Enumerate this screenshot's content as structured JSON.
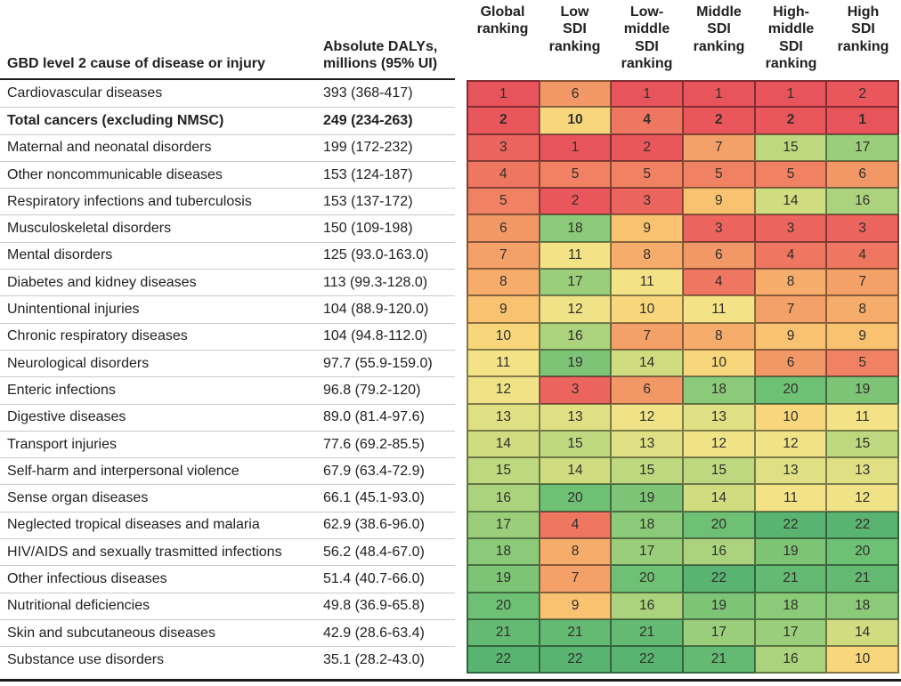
{
  "header": {
    "cause_label": "GBD level 2 cause of disease or injury",
    "dalys_label": "Absolute DALYs,\nmillions (95% UI)",
    "rankings": [
      "Global\nranking",
      "Low\nSDI\nranking",
      "Low-\nmiddle\nSDI\nranking",
      "Middle\nSDI\nranking",
      "High-\nmiddle\nSDI\nranking",
      "High\nSDI\nranking"
    ]
  },
  "palette": {
    "rank_colors": [
      "#e8545c",
      "#e9565c",
      "#ec645e",
      "#ef7660",
      "#f08163",
      "#f29867",
      "#f4a069",
      "#f6ac6b",
      "#f9c271",
      "#f7d67c",
      "#f4e386",
      "#efe287",
      "#dfe083",
      "#cfdc80",
      "#bdd87e",
      "#abd37d",
      "#9ace7b",
      "#8bca79",
      "#7dc477",
      "#6ec075",
      "#64ba72",
      "#5ab471"
    ],
    "cell_border": "rgba(0,0,0,0.45)",
    "rule_color": "#1a1a1a",
    "row_divider": "#c9c9c9"
  },
  "chart_data": {
    "type": "heatmap",
    "title": "",
    "row_header_label": "GBD level 2 cause of disease or injury",
    "value_column_label": "Absolute DALYs, millions (95% UI)",
    "columns": [
      "Global ranking",
      "Low SDI ranking",
      "Low-middle SDI ranking",
      "Middle SDI ranking",
      "High-middle SDI ranking",
      "High SDI ranking"
    ],
    "scale": {
      "min_rank": 1,
      "max_rank": 22,
      "low_color": "#e8545c",
      "high_color": "#5ab471"
    },
    "rows": [
      {
        "cause": "Cardiovascular diseases",
        "dalys": "393 (368-417)",
        "ranks": [
          1,
          6,
          1,
          1,
          1,
          2
        ],
        "bold": false
      },
      {
        "cause": "Total cancers (excluding NMSC)",
        "dalys": "249 (234-263)",
        "ranks": [
          2,
          10,
          4,
          2,
          2,
          1
        ],
        "bold": true
      },
      {
        "cause": "Maternal and neonatal disorders",
        "dalys": "199 (172-232)",
        "ranks": [
          3,
          1,
          2,
          7,
          15,
          17
        ],
        "bold": false
      },
      {
        "cause": "Other noncommunicable diseases",
        "dalys": "153 (124-187)",
        "ranks": [
          4,
          5,
          5,
          5,
          5,
          6
        ],
        "bold": false
      },
      {
        "cause": "Respiratory infections and tuberculosis",
        "dalys": "153 (137-172)",
        "ranks": [
          5,
          2,
          3,
          9,
          14,
          16
        ],
        "bold": false
      },
      {
        "cause": "Musculoskeletal disorders",
        "dalys": "150 (109-198)",
        "ranks": [
          6,
          18,
          9,
          3,
          3,
          3
        ],
        "bold": false
      },
      {
        "cause": "Mental disorders",
        "dalys": "125 (93.0-163.0)",
        "ranks": [
          7,
          11,
          8,
          6,
          4,
          4
        ],
        "bold": false
      },
      {
        "cause": "Diabetes and kidney diseases",
        "dalys": "113 (99.3-128.0)",
        "ranks": [
          8,
          17,
          11,
          4,
          8,
          7
        ],
        "bold": false
      },
      {
        "cause": "Unintentional injuries",
        "dalys": "104 (88.9-120.0)",
        "ranks": [
          9,
          12,
          10,
          11,
          7,
          8
        ],
        "bold": false
      },
      {
        "cause": "Chronic respiratory diseases",
        "dalys": "104 (94.8-112.0)",
        "ranks": [
          10,
          16,
          7,
          8,
          9,
          9
        ],
        "bold": false
      },
      {
        "cause": "Neurological disorders",
        "dalys": "97.7 (55.9-159.0)",
        "ranks": [
          11,
          19,
          14,
          10,
          6,
          5
        ],
        "bold": false
      },
      {
        "cause": "Enteric infections",
        "dalys": "96.8 (79.2-120)",
        "ranks": [
          12,
          3,
          6,
          18,
          20,
          19
        ],
        "bold": false
      },
      {
        "cause": "Digestive diseases",
        "dalys": "89.0 (81.4-97.6)",
        "ranks": [
          13,
          13,
          12,
          13,
          10,
          11
        ],
        "bold": false
      },
      {
        "cause": "Transport injuries",
        "dalys": "77.6 (69.2-85.5)",
        "ranks": [
          14,
          15,
          13,
          12,
          12,
          15
        ],
        "bold": false
      },
      {
        "cause": "Self-harm and interpersonal violence",
        "dalys": "67.9 (63.4-72.9)",
        "ranks": [
          15,
          14,
          15,
          15,
          13,
          13
        ],
        "bold": false
      },
      {
        "cause": "Sense organ diseases",
        "dalys": "66.1 (45.1-93.0)",
        "ranks": [
          16,
          20,
          19,
          14,
          11,
          12
        ],
        "bold": false
      },
      {
        "cause": "Neglected tropical diseases and malaria",
        "dalys": "62.9 (38.6-96.0)",
        "ranks": [
          17,
          4,
          18,
          20,
          22,
          22
        ],
        "bold": false
      },
      {
        "cause": "HIV/AIDS and sexually trasmitted infections",
        "dalys": "56.2 (48.4-67.0)",
        "ranks": [
          18,
          8,
          17,
          16,
          19,
          20
        ],
        "bold": false
      },
      {
        "cause": "Other infectious diseases",
        "dalys": "51.4 (40.7-66.0)",
        "ranks": [
          19,
          7,
          20,
          22,
          21,
          21
        ],
        "bold": false
      },
      {
        "cause": "Nutritional deficiencies",
        "dalys": "49.8 (36.9-65.8)",
        "ranks": [
          20,
          9,
          16,
          19,
          18,
          18
        ],
        "bold": false
      },
      {
        "cause": "Skin and subcutaneous diseases",
        "dalys": "42.9 (28.6-63.4)",
        "ranks": [
          21,
          21,
          21,
          17,
          17,
          14
        ],
        "bold": false
      },
      {
        "cause": "Substance use disorders",
        "dalys": "35.1 (28.2-43.0)",
        "ranks": [
          22,
          22,
          22,
          21,
          16,
          10
        ],
        "bold": false
      }
    ]
  }
}
